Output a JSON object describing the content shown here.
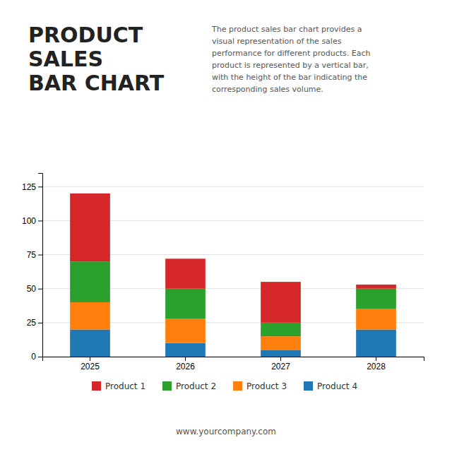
{
  "chart_data": {
    "type": "bar",
    "stacked": true,
    "title": "PRODUCT\nSALES\nBAR CHART",
    "subtitle": "The product sales bar chart provides a\nvisual representation of the sales\nperformance for different products. Each\nproduct is represented by a vertical bar,\nwith the height of the bar indicating the\ncorresponding sales volume.",
    "annotations": [
      "www.yourcompany.com"
    ],
    "categories": [
      "2025",
      "2026",
      "2027",
      "2028"
    ],
    "series": [
      {
        "name": "Product 4",
        "values": [
          20,
          10,
          5,
          20
        ]
      },
      {
        "name": "Product 3",
        "values": [
          20,
          18,
          10,
          15
        ]
      },
      {
        "name": "Product 2",
        "values": [
          30,
          22,
          10,
          15
        ]
      },
      {
        "name": "Product 1",
        "values": [
          50,
          22,
          30,
          3
        ]
      }
    ],
    "ylim": [
      0,
      135
    ],
    "yticks": [
      0,
      25,
      50,
      75,
      100,
      125
    ],
    "grid": true
  }
}
